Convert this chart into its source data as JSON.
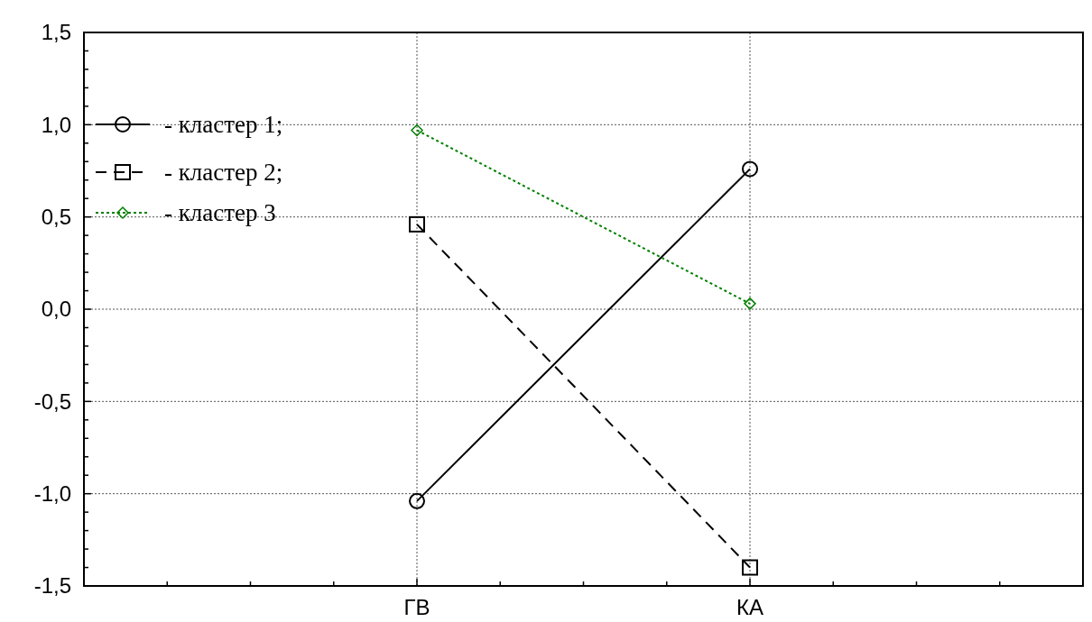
{
  "chart_data": {
    "type": "line",
    "categories": [
      "ГВ",
      "КА"
    ],
    "series": [
      {
        "name": "- кластер 1;",
        "color": "#000000",
        "values": [
          -1.04,
          0.76
        ],
        "marker": "circle",
        "line_style": "solid"
      },
      {
        "name": "- кластер 2;",
        "color": "#000000",
        "values": [
          0.46,
          -1.4
        ],
        "marker": "square",
        "line_style": "dashed"
      },
      {
        "name": "- кластер 3",
        "color": "#008000",
        "values": [
          0.97,
          0.03
        ],
        "marker": "diamond",
        "line_style": "dotted"
      }
    ],
    "ylim": [
      -1.5,
      1.5
    ],
    "yticks": [
      {
        "value": -1.5,
        "label": "-1,5"
      },
      {
        "value": -1.4,
        "label": null
      },
      {
        "value": -1.3,
        "label": null
      },
      {
        "value": -1.2,
        "label": null
      },
      {
        "value": -1.1,
        "label": null
      },
      {
        "value": -1.0,
        "label": "-1,0"
      },
      {
        "value": -0.9,
        "label": null
      },
      {
        "value": -0.8,
        "label": null
      },
      {
        "value": -0.7,
        "label": null
      },
      {
        "value": -0.6,
        "label": null
      },
      {
        "value": -0.5,
        "label": "-0,5"
      },
      {
        "value": -0.4,
        "label": null
      },
      {
        "value": -0.3,
        "label": null
      },
      {
        "value": -0.2,
        "label": null
      },
      {
        "value": -0.1,
        "label": null
      },
      {
        "value": 0,
        "label": "0,0"
      },
      {
        "value": 0.1,
        "label": null
      },
      {
        "value": 0.2,
        "label": null
      },
      {
        "value": 0.3,
        "label": null
      },
      {
        "value": 0.4,
        "label": null
      },
      {
        "value": 0.5,
        "label": "0,5"
      },
      {
        "value": 0.6,
        "label": null
      },
      {
        "value": 0.7,
        "label": null
      },
      {
        "value": 0.8,
        "label": null
      },
      {
        "value": 0.9,
        "label": null
      },
      {
        "value": 1.0,
        "label": "1,0"
      },
      {
        "value": 1.1,
        "label": null
      },
      {
        "value": 1.2,
        "label": null
      },
      {
        "value": 1.3,
        "label": null
      },
      {
        "value": 1.4,
        "label": null
      },
      {
        "value": 1.5,
        "label": "1,5"
      }
    ],
    "grid": true,
    "legend": "top left"
  }
}
